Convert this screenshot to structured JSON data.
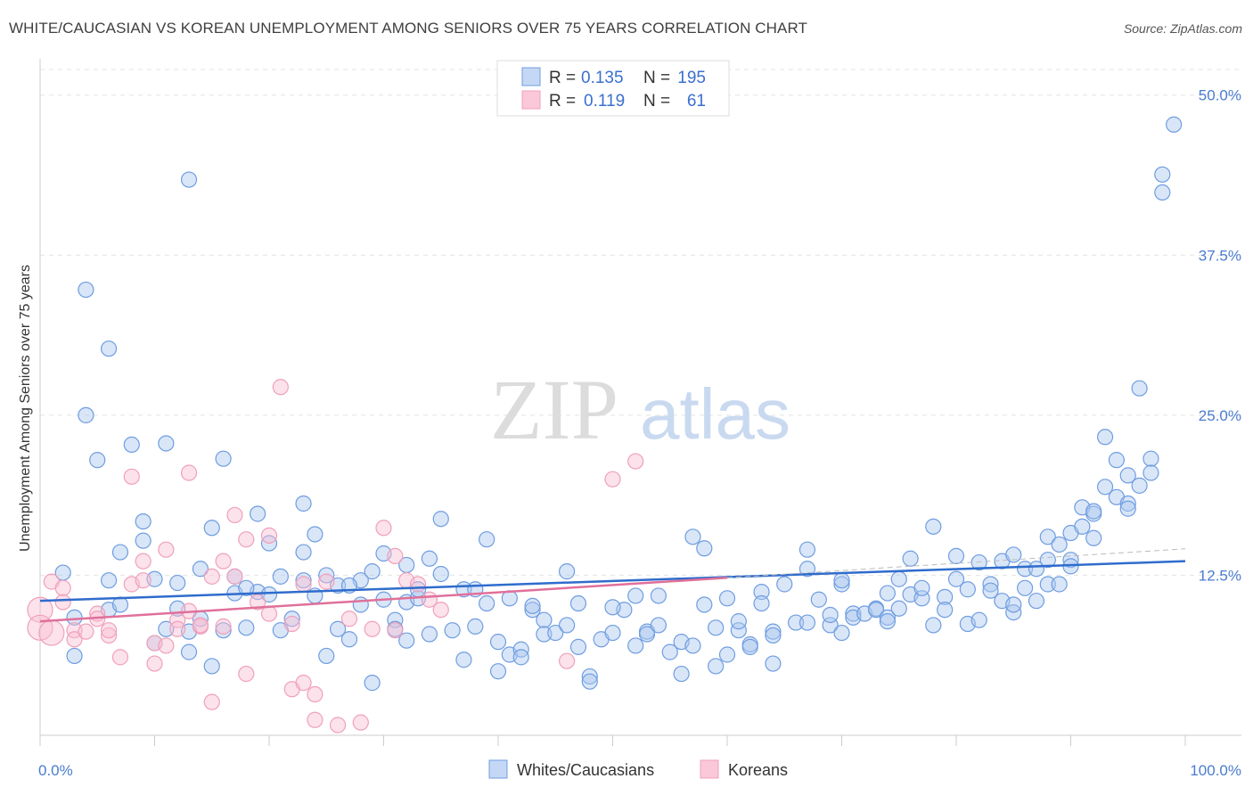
{
  "title": "WHITE/CAUCASIAN VS KOREAN UNEMPLOYMENT AMONG SENIORS OVER 75 YEARS CORRELATION CHART",
  "source": "Source: ZipAtlas.com",
  "watermark": {
    "zip": "ZIP",
    "atlas": "atlas"
  },
  "colors": {
    "white": "#6f9de0",
    "korean": "#f0a0bb",
    "white_line": "#2f6ccc",
    "korean_line": "#e0709a"
  },
  "legend": {
    "r_label": "R = ",
    "n_label": "N = ",
    "white": {
      "r": "0.135",
      "n": "195"
    },
    "korean": {
      "r": "0.119",
      "n": "61"
    }
  },
  "chart_data": {
    "type": "scatter",
    "title": "WHITE/CAUCASIAN VS KOREAN UNEMPLOYMENT AMONG SENIORS OVER 75 YEARS CORRELATION CHART",
    "xlabel": "",
    "ylabel": "Unemployment Among Seniors over 75 years",
    "xlim": [
      0,
      100
    ],
    "ylim": [
      0,
      52
    ],
    "x_tick_labels": [
      "0.0%",
      "100.0%"
    ],
    "y_ticks": [
      12.5,
      25.0,
      37.5,
      50.0
    ],
    "y_tick_labels": [
      "12.5%",
      "25.0%",
      "37.5%",
      "50.0%"
    ],
    "grid": true,
    "legend_position": "top-center",
    "series": [
      {
        "name": "Whites/Caucasians",
        "trend": {
          "x": [
            0,
            100
          ],
          "y": [
            10.5,
            13.6
          ]
        },
        "points": [
          [
            2,
            12.7
          ],
          [
            3,
            9.2
          ],
          [
            4,
            34.8
          ],
          [
            4,
            25
          ],
          [
            5,
            21.5
          ],
          [
            6,
            30.2
          ],
          [
            6,
            9.8
          ],
          [
            6,
            12.1
          ],
          [
            7,
            14.3
          ],
          [
            8,
            22.7
          ],
          [
            9,
            15.2
          ],
          [
            9,
            16.7
          ],
          [
            10,
            12.2
          ],
          [
            11,
            8.3
          ],
          [
            11,
            22.8
          ],
          [
            12,
            9.9
          ],
          [
            13,
            8.1
          ],
          [
            13,
            6.5
          ],
          [
            13,
            43.4
          ],
          [
            14,
            13
          ],
          [
            15,
            16.2
          ],
          [
            15,
            5.4
          ],
          [
            16,
            8.2
          ],
          [
            16,
            21.6
          ],
          [
            17,
            11.1
          ],
          [
            17,
            12.4
          ],
          [
            18,
            8.4
          ],
          [
            19,
            17.3
          ],
          [
            19,
            11.2
          ],
          [
            20,
            15
          ],
          [
            21,
            8.2
          ],
          [
            21,
            12.4
          ],
          [
            22,
            9.1
          ],
          [
            23,
            12.1
          ],
          [
            23,
            18.1
          ],
          [
            23,
            14.3
          ],
          [
            24,
            15.7
          ],
          [
            24,
            10.9
          ],
          [
            25,
            12.5
          ],
          [
            25,
            6.2
          ],
          [
            26,
            11.7
          ],
          [
            26,
            8.3
          ],
          [
            27,
            7.5
          ],
          [
            28,
            10.2
          ],
          [
            28,
            12.1
          ],
          [
            29,
            12.8
          ],
          [
            29,
            4.1
          ],
          [
            30,
            14.2
          ],
          [
            30,
            10.6
          ],
          [
            31,
            9
          ],
          [
            31,
            8.3
          ],
          [
            32,
            13.3
          ],
          [
            32,
            10.4
          ],
          [
            32,
            7.4
          ],
          [
            33,
            10.7
          ],
          [
            34,
            13.8
          ],
          [
            34,
            7.9
          ],
          [
            35,
            16.9
          ],
          [
            35,
            12.6
          ],
          [
            36,
            8.2
          ],
          [
            37,
            11.4
          ],
          [
            37,
            5.9
          ],
          [
            38,
            11.4
          ],
          [
            38,
            8.5
          ],
          [
            39,
            15.3
          ],
          [
            39,
            10.3
          ],
          [
            40,
            7.3
          ],
          [
            40,
            5
          ],
          [
            41,
            10.7
          ],
          [
            41,
            6.3
          ],
          [
            42,
            6.7
          ],
          [
            42,
            6.1
          ],
          [
            43,
            9.8
          ],
          [
            44,
            9
          ],
          [
            44,
            7.9
          ],
          [
            45,
            8
          ],
          [
            46,
            12.8
          ],
          [
            46,
            8.6
          ],
          [
            47,
            10.3
          ],
          [
            47,
            6.9
          ],
          [
            48,
            4.6
          ],
          [
            48,
            4.2
          ],
          [
            49,
            7.5
          ],
          [
            50,
            8
          ],
          [
            51,
            9.8
          ],
          [
            52,
            10.9
          ],
          [
            52,
            7
          ],
          [
            53,
            8.1
          ],
          [
            53,
            7.9
          ],
          [
            54,
            10.9
          ],
          [
            54,
            8.6
          ],
          [
            55,
            6.5
          ],
          [
            56,
            4.8
          ],
          [
            56,
            7.3
          ],
          [
            57,
            15.5
          ],
          [
            57,
            7
          ],
          [
            58,
            14.6
          ],
          [
            58,
            10.2
          ],
          [
            59,
            5.4
          ],
          [
            59,
            8.4
          ],
          [
            60,
            6.3
          ],
          [
            61,
            8.2
          ],
          [
            61,
            8.9
          ],
          [
            62,
            7.1
          ],
          [
            62,
            6.9
          ],
          [
            63,
            11.2
          ],
          [
            63,
            10.3
          ],
          [
            64,
            8.1
          ],
          [
            64,
            7.8
          ],
          [
            64,
            5.6
          ],
          [
            65,
            11.8
          ],
          [
            66,
            8.8
          ],
          [
            67,
            13
          ],
          [
            67,
            8.8
          ],
          [
            67,
            14.5
          ],
          [
            68,
            10.6
          ],
          [
            69,
            8.6
          ],
          [
            69,
            9.4
          ],
          [
            70,
            11.8
          ],
          [
            70,
            8
          ],
          [
            71,
            9.5
          ],
          [
            71,
            9.2
          ],
          [
            72,
            9.5
          ],
          [
            73,
            9.9
          ],
          [
            73,
            9.8
          ],
          [
            74,
            9.2
          ],
          [
            74,
            8.9
          ],
          [
            74,
            11.1
          ],
          [
            75,
            9.9
          ],
          [
            75,
            12.2
          ],
          [
            76,
            11
          ],
          [
            76,
            13.8
          ],
          [
            77,
            10.7
          ],
          [
            77,
            11.5
          ],
          [
            78,
            16.3
          ],
          [
            78,
            8.6
          ],
          [
            79,
            10.8
          ],
          [
            79,
            9.8
          ],
          [
            80,
            14
          ],
          [
            81,
            11.4
          ],
          [
            81,
            8.7
          ],
          [
            82,
            9
          ],
          [
            82,
            13.5
          ],
          [
            83,
            11.8
          ],
          [
            83,
            11.3
          ],
          [
            84,
            13.6
          ],
          [
            84,
            10.5
          ],
          [
            85,
            9.6
          ],
          [
            85,
            10.2
          ],
          [
            86,
            13
          ],
          [
            86,
            11.5
          ],
          [
            87,
            10.5
          ],
          [
            87,
            13
          ],
          [
            88,
            13.7
          ],
          [
            88,
            11.8
          ],
          [
            88,
            15.5
          ],
          [
            89,
            11.8
          ],
          [
            89,
            14.9
          ],
          [
            90,
            13.7
          ],
          [
            90,
            15.8
          ],
          [
            91,
            16.3
          ],
          [
            91,
            17.8
          ],
          [
            92,
            17.3
          ],
          [
            92,
            17.5
          ],
          [
            93,
            19.4
          ],
          [
            93,
            23.3
          ],
          [
            94,
            21.5
          ],
          [
            94,
            18.6
          ],
          [
            95,
            20.3
          ],
          [
            95,
            18.1
          ],
          [
            96,
            19.5
          ],
          [
            96,
            27.1
          ],
          [
            97,
            21.6
          ],
          [
            98,
            43.8
          ],
          [
            98,
            42.4
          ],
          [
            99,
            47.7
          ],
          [
            20,
            11
          ],
          [
            10,
            7.2
          ],
          [
            3,
            6.2
          ],
          [
            7,
            10.2
          ],
          [
            12,
            11.9
          ],
          [
            14,
            9.1
          ],
          [
            18,
            11.5
          ],
          [
            27,
            11.7
          ],
          [
            33,
            11.4
          ],
          [
            43,
            10.1
          ],
          [
            50,
            10
          ],
          [
            60,
            10.7
          ],
          [
            70,
            12.1
          ],
          [
            80,
            12.2
          ],
          [
            85,
            14.1
          ],
          [
            90,
            13.2
          ],
          [
            92,
            15.4
          ],
          [
            95,
            17.7
          ],
          [
            97,
            20.5
          ]
        ]
      },
      {
        "name": "Koreans",
        "trend": {
          "x": [
            0,
            60
          ],
          "y": [
            8.9,
            12.3
          ]
        },
        "points": [
          [
            0,
            9.8
          ],
          [
            0,
            8.4
          ],
          [
            1,
            8
          ],
          [
            1,
            12
          ],
          [
            2,
            10.4
          ],
          [
            2,
            11.5
          ],
          [
            3,
            8.2
          ],
          [
            3,
            7.5
          ],
          [
            4,
            8.1
          ],
          [
            5,
            9.5
          ],
          [
            5,
            9.1
          ],
          [
            6,
            7.8
          ],
          [
            6,
            8.2
          ],
          [
            7,
            6.1
          ],
          [
            8,
            11.8
          ],
          [
            8,
            20.2
          ],
          [
            9,
            13.6
          ],
          [
            9,
            12.1
          ],
          [
            10,
            7.2
          ],
          [
            10,
            5.6
          ],
          [
            11,
            14.5
          ],
          [
            11,
            7
          ],
          [
            12,
            9
          ],
          [
            12,
            8.3
          ],
          [
            13,
            20.5
          ],
          [
            13,
            9.7
          ],
          [
            14,
            8.5
          ],
          [
            14,
            8.6
          ],
          [
            15,
            12.4
          ],
          [
            15,
            2.6
          ],
          [
            16,
            13.6
          ],
          [
            16,
            8.5
          ],
          [
            17,
            12.4
          ],
          [
            17,
            17.2
          ],
          [
            18,
            4.8
          ],
          [
            18,
            15.3
          ],
          [
            19,
            10.4
          ],
          [
            20,
            9.5
          ],
          [
            20,
            15.6
          ],
          [
            21,
            27.2
          ],
          [
            22,
            8.7
          ],
          [
            22,
            3.6
          ],
          [
            23,
            4.1
          ],
          [
            23,
            11.8
          ],
          [
            24,
            1.2
          ],
          [
            24,
            3.2
          ],
          [
            25,
            12
          ],
          [
            26,
            0.8
          ],
          [
            27,
            9.1
          ],
          [
            28,
            1
          ],
          [
            29,
            8.3
          ],
          [
            30,
            16.2
          ],
          [
            31,
            14
          ],
          [
            31,
            8.2
          ],
          [
            32,
            12.1
          ],
          [
            33,
            11.8
          ],
          [
            34,
            10.6
          ],
          [
            35,
            9.8
          ],
          [
            46,
            5.8
          ],
          [
            50,
            20
          ],
          [
            52,
            21.4
          ]
        ]
      }
    ]
  },
  "bottom_legend": {
    "white": "Whites/Caucasians",
    "korean": "Koreans"
  }
}
